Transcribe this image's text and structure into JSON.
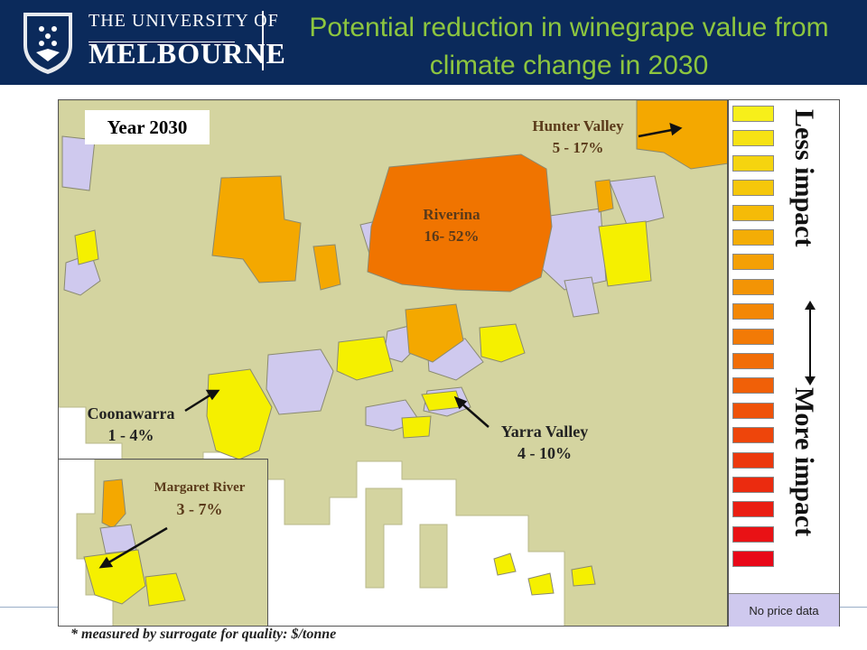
{
  "header": {
    "logo_line1": "THE UNIVERSITY OF",
    "logo_line2": "MELBOURNE",
    "title_line1": "Potential reduction in winegrape value from",
    "title_line2": "climate change in 2030"
  },
  "map": {
    "year_label": "Year 2030",
    "regions": [
      {
        "name": "Hunter Valley",
        "range": "5 - 17%"
      },
      {
        "name": "Riverina",
        "range": "16- 52%"
      },
      {
        "name": "Coonawarra",
        "range": "1 - 4%"
      },
      {
        "name": "Yarra Valley",
        "range": "4 - 10%"
      },
      {
        "name": "Margaret River",
        "range": "3 - 7%"
      }
    ],
    "colors": {
      "land": "#d4d4a0",
      "no_data": "#cfc9ee",
      "low": "#f5f000",
      "mid": "#f4a800",
      "high": "#f07400"
    }
  },
  "legend": {
    "less": "Less impact",
    "more": "More impact",
    "no_price": "No price data",
    "scale_colors": [
      "#f7ef1a",
      "#f6e214",
      "#f5d40f",
      "#f5c70b",
      "#f5bb08",
      "#f4ad06",
      "#f4a005",
      "#f39405",
      "#f38705",
      "#f27a06",
      "#f16d07",
      "#f06008",
      "#ef5209",
      "#ee450b",
      "#ec380d",
      "#eb2b0f",
      "#ea1e12",
      "#e91215",
      "#e80818"
    ]
  },
  "footnote": "* measured by surrogate for quality: $/tonne"
}
